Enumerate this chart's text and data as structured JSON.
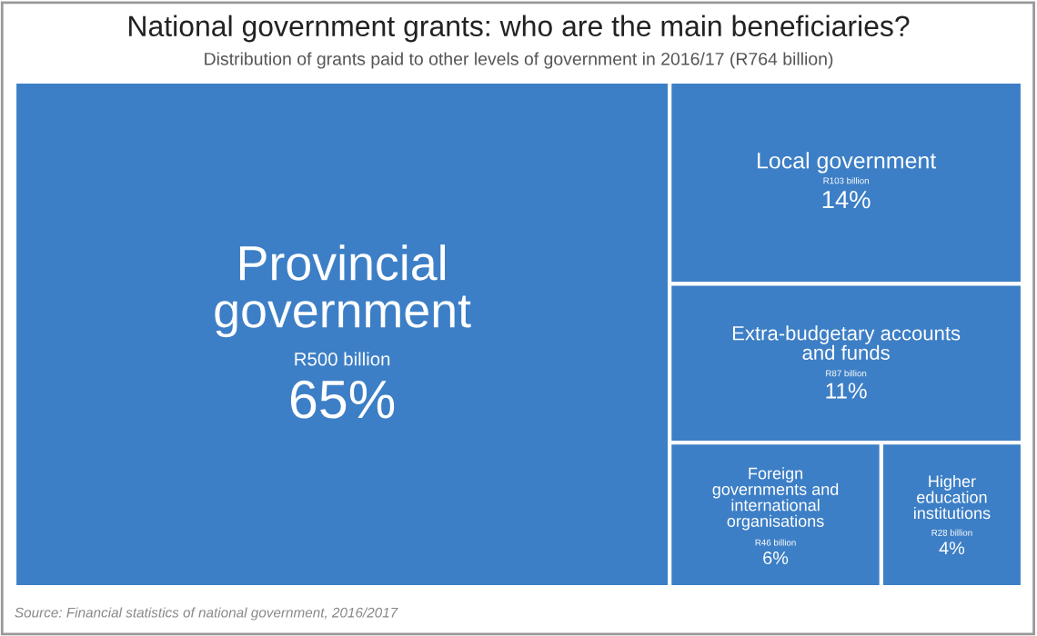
{
  "chart_data": {
    "type": "other",
    "title": "National government grants: who are the main beneficiaries?",
    "subtitle": "Distribution of grants paid to other levels of government in 2016/17 (R764 billion)",
    "categories": [
      "Provincial government",
      "Local government",
      "Extra-budgetary accounts and funds",
      "Foreign governments and international organisations",
      "Higher education institutions"
    ],
    "values": [
      65,
      14,
      11,
      6,
      4
    ],
    "value_labels": [
      "65%",
      "14%",
      "11%",
      "6%",
      "4%"
    ],
    "color": "#3d7fc6",
    "annotations": [
      {
        "text": "R500 billion",
        "x": "Provincial government"
      },
      {
        "text": "R103 billion",
        "x": "Local government"
      },
      {
        "text": "R87 billion",
        "x": "Extra-budgetary accounts and funds"
      },
      {
        "text": "R46 billion",
        "x": "Foreign governments and international organisations"
      },
      {
        "text": "R28 billion",
        "x": "Higher education institutions"
      },
      "Source: Financial statistics of national government, 2016/2017"
    ]
  }
}
